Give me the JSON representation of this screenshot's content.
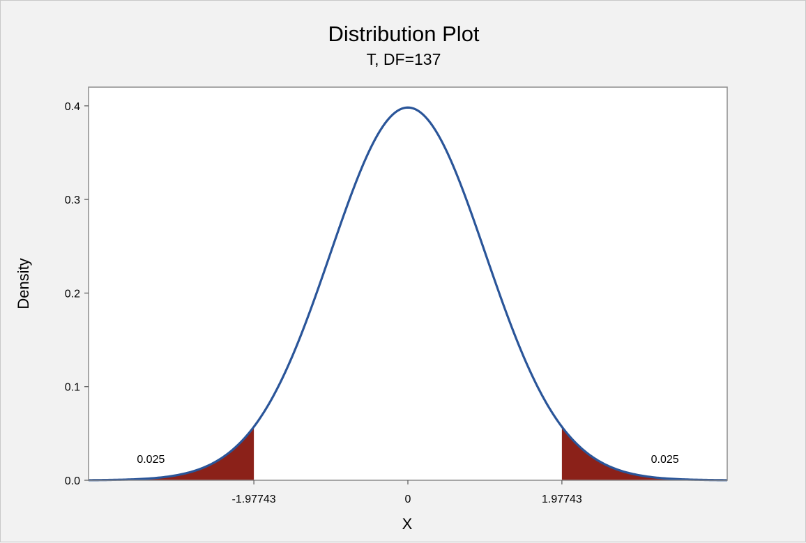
{
  "chart_data": {
    "type": "area",
    "title": "Distribution Plot",
    "subtitle": "T, DF=137",
    "distribution": "T",
    "df": 137,
    "xlabel": "X",
    "ylabel": "Density",
    "xlim": [
      -4.1,
      4.1
    ],
    "ylim": [
      0,
      0.42
    ],
    "yticks": [
      0.0,
      0.1,
      0.2,
      0.3,
      0.4
    ],
    "ytick_labels": [
      "0.0",
      "0.1",
      "0.2",
      "0.3",
      "0.4"
    ],
    "xticks": [
      -1.97743,
      0,
      1.97743
    ],
    "xtick_labels": [
      "-1.97743",
      "0",
      "1.97743"
    ],
    "critical_values": [
      -1.97743,
      1.97743
    ],
    "tail_areas": [
      {
        "side": "left",
        "label": "0.025",
        "label_x": -3.3,
        "label_y": 0.023
      },
      {
        "side": "right",
        "label": "0.025",
        "label_x": 3.3,
        "label_y": 0.023
      }
    ],
    "grid": false,
    "legend": "none"
  },
  "colors": {
    "curve": "#2a5599",
    "shade": "#8b2119",
    "plot_bg": "#ffffff",
    "page_bg": "#f2f2f2",
    "plot_border": "#8c8c8c"
  }
}
